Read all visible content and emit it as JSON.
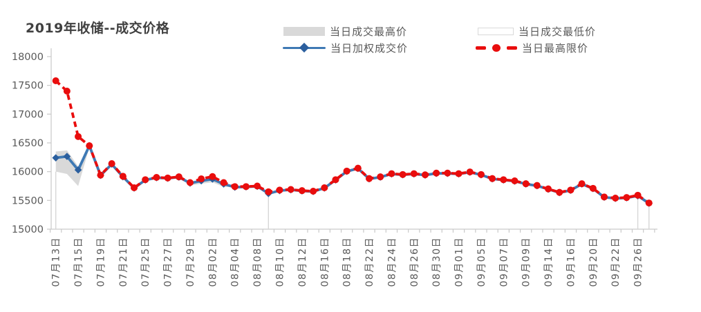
{
  "title": "2019年收储--成交价格",
  "legend": {
    "high": {
      "label": "当日成交最高价"
    },
    "low": {
      "label": "当日成交最低价"
    },
    "weighted": {
      "label": "当日加权成交价"
    },
    "limit": {
      "label": "当日最高限价"
    }
  },
  "colors": {
    "red": "#E90D0D",
    "blue_line": "#3E79B4",
    "blue_marker": "#2B5F9E",
    "band_gray": "#D9D9D9",
    "low_column_border": "#D6D6D6",
    "axis_line": "#C9C9C9",
    "tick_text": "#595959",
    "title_text": "#404040"
  },
  "chart_data": {
    "type": "line",
    "title": "2019年收储--成交价格",
    "grid": false,
    "legend_position": "top",
    "ylim": [
      15000,
      18000
    ],
    "y_ticks": [
      18000,
      17500,
      17000,
      16500,
      16000,
      15500,
      15000
    ],
    "label_every": 2,
    "x_tick_labels_visible": [
      "07月13日",
      "07月15日",
      "07月19日",
      "07月21日",
      "07月25日",
      "07月27日",
      "07月29日",
      "08月02日",
      "08月04日",
      "08月08日",
      "08月10日",
      "08月12日",
      "08月16日",
      "08月18日",
      "08月22日",
      "08月24日",
      "08月26日",
      "08月30日",
      "09月01日",
      "09月05日",
      "09月07日",
      "09月09日",
      "09月14日",
      "09月16日",
      "09月20日",
      "09月22日",
      "09月26日"
    ],
    "categories": [
      "07月13日",
      "",
      "07月15日",
      "",
      "07月19日",
      "",
      "07月21日",
      "",
      "07月25日",
      "",
      "07月27日",
      "",
      "07月29日",
      "",
      "08月02日",
      "",
      "08月04日",
      "",
      "08月08日",
      "",
      "08月10日",
      "",
      "08月12日",
      "",
      "08月16日",
      "",
      "08月18日",
      "",
      "08月22日",
      "",
      "08月24日",
      "",
      "08月26日",
      "",
      "08月30日",
      "",
      "09月01日",
      "",
      "09月05日",
      "",
      "09月07日",
      "",
      "09月09日",
      "",
      "09月14日",
      "",
      "09月16日",
      "",
      "09月20日",
      "",
      "09月22日",
      "",
      "09月26日",
      ""
    ],
    "series": [
      {
        "name": "当日成交最高价",
        "type": "band-top",
        "values": [
          16350,
          16370,
          16090,
          16460,
          15935,
          16130,
          15910,
          15715,
          15855,
          15895,
          15885,
          15905,
          15800,
          15840,
          15870,
          15785,
          15730,
          15735,
          15745,
          15620,
          15670,
          15685,
          15665,
          15655,
          15715,
          15855,
          16005,
          16055,
          15875,
          15905,
          15960,
          15945,
          15960,
          15940,
          15970,
          15970,
          15960,
          15990,
          15945,
          15875,
          15855,
          15835,
          15785,
          15755,
          15695,
          15635,
          15675,
          15785,
          15705,
          15555,
          15535,
          15545,
          15580,
          15450
        ]
      },
      {
        "name": "当日成交最低价",
        "type": "band-bottom",
        "visible_columns": [
          0,
          19,
          52,
          53
        ],
        "values": [
          16000,
          15960,
          15750,
          16420,
          15935,
          16130,
          15910,
          15715,
          15855,
          15895,
          15885,
          15905,
          15760,
          15790,
          15815,
          15735,
          15730,
          15735,
          15745,
          15620,
          15670,
          15685,
          15665,
          15655,
          15715,
          15855,
          16005,
          16055,
          15875,
          15905,
          15960,
          15945,
          15960,
          15940,
          15970,
          15970,
          15960,
          15990,
          15945,
          15875,
          15855,
          15835,
          15785,
          15755,
          15695,
          15635,
          15675,
          15785,
          15705,
          15555,
          15535,
          15545,
          15575,
          15410
        ]
      },
      {
        "name": "当日加权成交价",
        "type": "line",
        "marker": "diamond",
        "values": [
          16240,
          16265,
          16030,
          16450,
          15935,
          16130,
          15910,
          15715,
          15855,
          15895,
          15885,
          15905,
          15800,
          15840,
          15870,
          15785,
          15730,
          15735,
          15745,
          15620,
          15670,
          15685,
          15665,
          15655,
          15715,
          15855,
          16005,
          16055,
          15875,
          15905,
          15960,
          15945,
          15960,
          15940,
          15970,
          15970,
          15960,
          15990,
          15945,
          15875,
          15855,
          15835,
          15785,
          15755,
          15695,
          15635,
          15675,
          15785,
          15705,
          15555,
          15535,
          15545,
          15580,
          15450
        ]
      },
      {
        "name": "当日最高限价",
        "type": "line-dashed",
        "marker": "circle",
        "values": [
          17580,
          17400,
          16610,
          16450,
          15940,
          16140,
          15920,
          15720,
          15860,
          15900,
          15890,
          15910,
          15810,
          15875,
          15915,
          15810,
          15740,
          15740,
          15750,
          15650,
          15680,
          15690,
          15670,
          15660,
          15720,
          15860,
          16010,
          16060,
          15880,
          15910,
          15965,
          15950,
          15965,
          15945,
          15975,
          15975,
          15965,
          15995,
          15950,
          15880,
          15860,
          15840,
          15790,
          15760,
          15700,
          15640,
          15680,
          15790,
          15710,
          15560,
          15540,
          15550,
          15590,
          15455
        ]
      }
    ]
  }
}
